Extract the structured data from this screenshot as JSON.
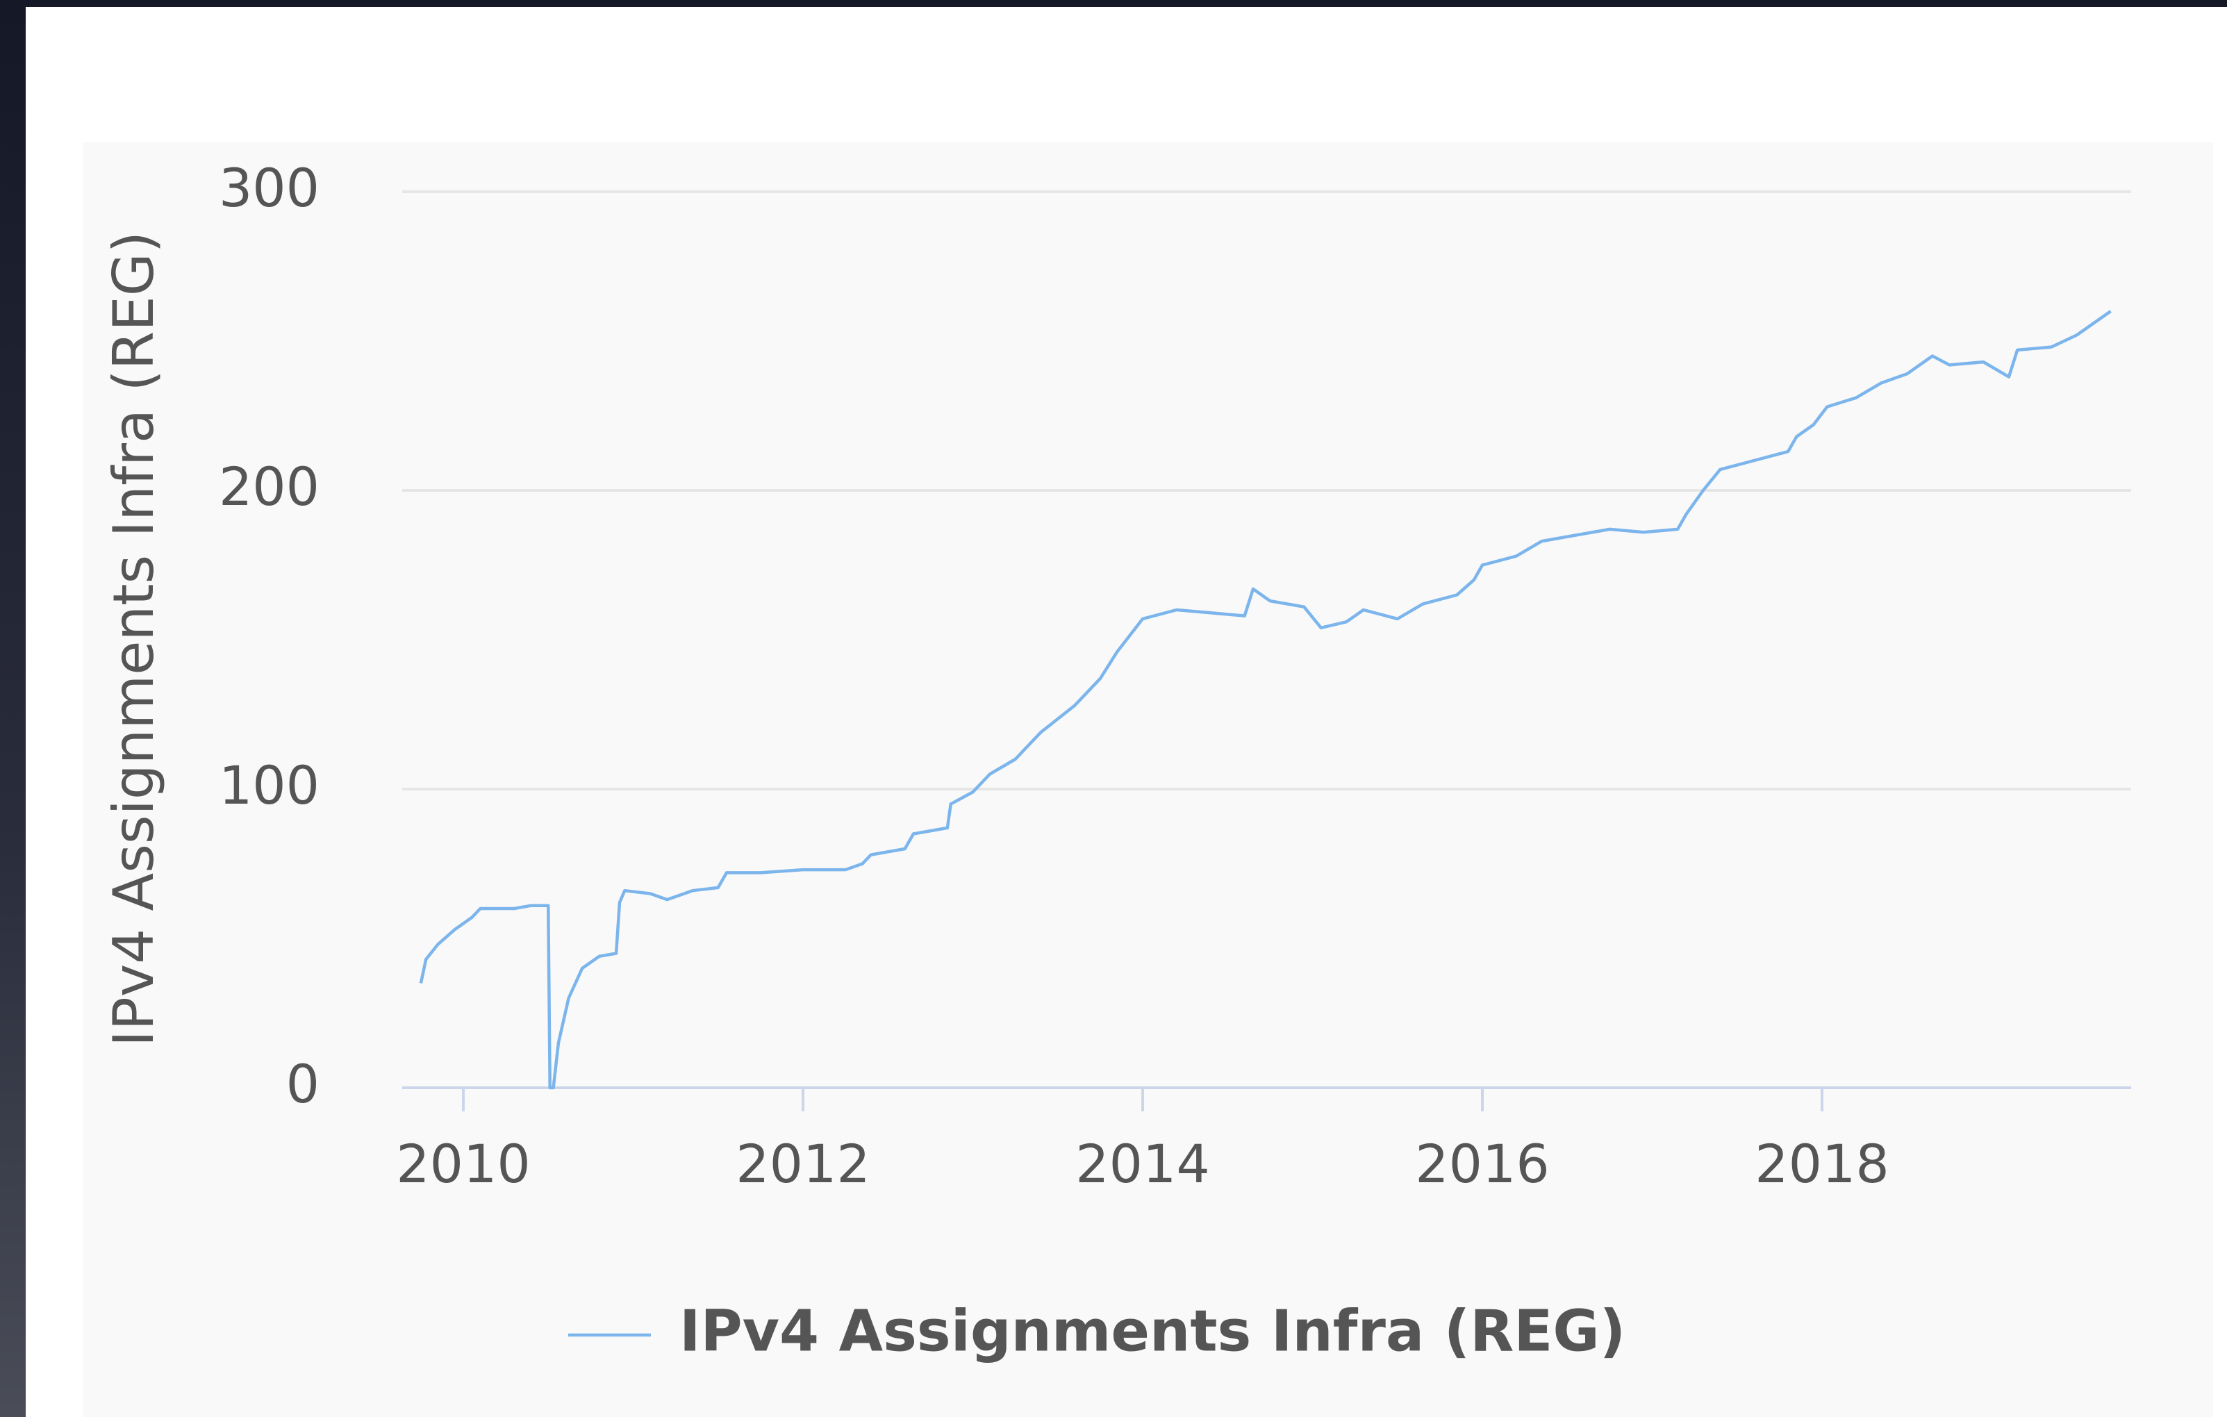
{
  "chart_data": {
    "type": "line",
    "y_label": "IPv4 Assignments Infra (REG)",
    "x": [
      2009.75,
      2009.78,
      2009.85,
      2009.95,
      2010.05,
      2010.1,
      2010.3,
      2010.4,
      2010.5,
      2010.51,
      2010.53,
      2010.56,
      2010.62,
      2010.7,
      2010.8,
      2010.9,
      2010.92,
      2010.95,
      2011.1,
      2011.2,
      2011.35,
      2011.5,
      2011.55,
      2011.75,
      2012.0,
      2012.25,
      2012.35,
      2012.4,
      2012.6,
      2012.65,
      2012.85,
      2012.87,
      2013.0,
      2013.1,
      2013.25,
      2013.4,
      2013.6,
      2013.75,
      2013.85,
      2014.0,
      2014.2,
      2014.4,
      2014.6,
      2014.65,
      2014.75,
      2014.95,
      2015.05,
      2015.2,
      2015.3,
      2015.5,
      2015.65,
      2015.85,
      2015.95,
      2016.0,
      2016.2,
      2016.35,
      2016.55,
      2016.75,
      2016.95,
      2017.15,
      2017.2,
      2017.3,
      2017.4,
      2017.6,
      2017.8,
      2017.85,
      2017.95,
      2018.03,
      2018.2,
      2018.35,
      2018.5,
      2018.65,
      2018.75,
      2018.95,
      2019.1,
      2019.15,
      2019.35,
      2019.5,
      2019.7
    ],
    "series": [
      {
        "name": "IPv4 Assignments Infra (REG)",
        "color": "#7cb5ec",
        "values": [
          35,
          43,
          48,
          53,
          57,
          60,
          60,
          61,
          61,
          0,
          0,
          15,
          30,
          40,
          44,
          45,
          62,
          66,
          65,
          63,
          66,
          67,
          72,
          72,
          73,
          73,
          75,
          78,
          80,
          85,
          87,
          95,
          99,
          105,
          110,
          119,
          128,
          137,
          146,
          157,
          160,
          159,
          158,
          167,
          163,
          161,
          154,
          156,
          160,
          157,
          162,
          165,
          170,
          175,
          178,
          183,
          185,
          187,
          186,
          187,
          192,
          200,
          207,
          210,
          213,
          218,
          222,
          228,
          231,
          236,
          239,
          245,
          242,
          243,
          238,
          247,
          248,
          252,
          260
        ]
      }
    ],
    "xlim": [
      2009.64,
      2019.82
    ],
    "xticks": [
      2010,
      2012,
      2014,
      2016,
      2018
    ],
    "ylim": [
      0,
      300
    ],
    "yticks": [
      0,
      100,
      200,
      300
    ],
    "grid": true
  }
}
